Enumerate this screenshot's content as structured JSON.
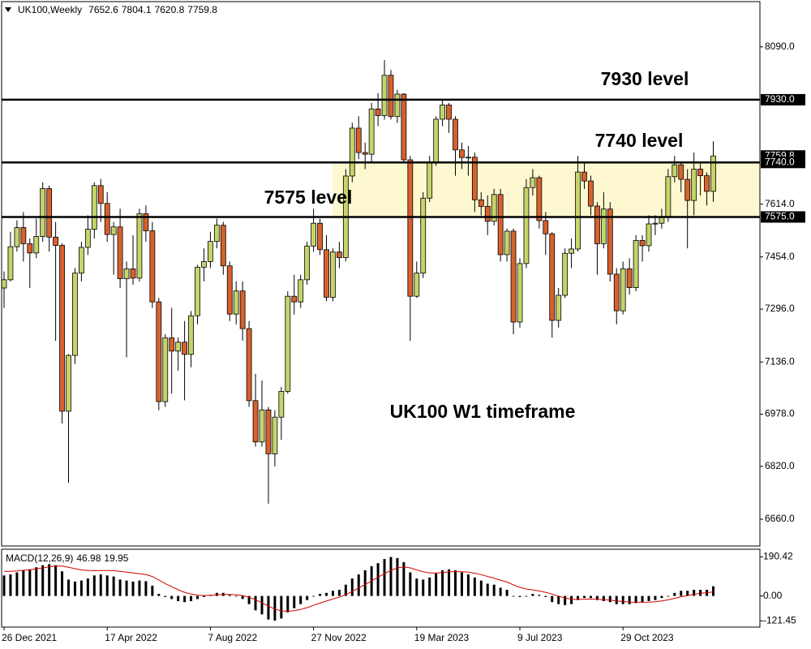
{
  "chart_data": {
    "type": "candlestick",
    "symbol": "UK100,Weekly",
    "categories": [
      "26 Dec 2021",
      null,
      null,
      null,
      null,
      null,
      null,
      null,
      null,
      null,
      null,
      null,
      null,
      null,
      null,
      null,
      "17 Apr 2022",
      null,
      null,
      null,
      null,
      null,
      null,
      null,
      null,
      null,
      null,
      null,
      null,
      null,
      null,
      null,
      "7 Aug 2022",
      null,
      null,
      null,
      null,
      null,
      null,
      null,
      null,
      null,
      null,
      null,
      null,
      null,
      null,
      null,
      "27 Nov 2022",
      null,
      null,
      null,
      null,
      null,
      null,
      null,
      null,
      null,
      null,
      null,
      null,
      null,
      null,
      null,
      "19 Mar 2023",
      null,
      null,
      null,
      null,
      null,
      null,
      null,
      null,
      null,
      null,
      null,
      null,
      null,
      null,
      null,
      "9 Jul 2023",
      null,
      null,
      null,
      null,
      null,
      null,
      null,
      null,
      null,
      null,
      null,
      null,
      null,
      null,
      null,
      "29 Oct 2023",
      null,
      null,
      null,
      null,
      null,
      null,
      null,
      null,
      null,
      null,
      null,
      null,
      null,
      null
    ],
    "candles": [
      [
        7360,
        7410,
        7300,
        7385
      ],
      [
        7385,
        7530,
        7380,
        7485
      ],
      [
        7485,
        7565,
        7470,
        7543
      ],
      [
        7543,
        7590,
        7440,
        7494
      ],
      [
        7494,
        7510,
        7360,
        7466
      ],
      [
        7466,
        7570,
        7450,
        7516
      ],
      [
        7516,
        7680,
        7500,
        7661
      ],
      [
        7661,
        7670,
        7470,
        7514
      ],
      [
        7514,
        7560,
        7200,
        7489
      ],
      [
        7489,
        7495,
        6950,
        6987
      ],
      [
        6987,
        7160,
        6770,
        7156
      ],
      [
        7156,
        7420,
        7130,
        7405
      ],
      [
        7405,
        7500,
        7380,
        7483
      ],
      [
        7483,
        7580,
        7460,
        7538
      ],
      [
        7538,
        7680,
        7510,
        7670
      ],
      [
        7670,
        7690,
        7560,
        7616
      ],
      [
        7616,
        7650,
        7500,
        7522
      ],
      [
        7522,
        7560,
        7400,
        7545
      ],
      [
        7545,
        7600,
        7360,
        7388
      ],
      [
        7388,
        7440,
        7150,
        7418
      ],
      [
        7418,
        7520,
        7370,
        7390
      ],
      [
        7390,
        7600,
        7380,
        7585
      ],
      [
        7585,
        7610,
        7500,
        7533
      ],
      [
        7533,
        7560,
        7300,
        7318
      ],
      [
        7318,
        7330,
        6990,
        7016
      ],
      [
        7016,
        7220,
        7000,
        7209
      ],
      [
        7209,
        7300,
        7040,
        7169
      ],
      [
        7169,
        7210,
        7110,
        7196
      ],
      [
        7196,
        7260,
        7020,
        7159
      ],
      [
        7159,
        7290,
        7120,
        7276
      ],
      [
        7276,
        7430,
        7250,
        7423
      ],
      [
        7423,
        7480,
        7380,
        7440
      ],
      [
        7440,
        7530,
        7420,
        7501
      ],
      [
        7501,
        7570,
        7480,
        7550
      ],
      [
        7550,
        7560,
        7400,
        7427
      ],
      [
        7427,
        7440,
        7260,
        7281
      ],
      [
        7281,
        7380,
        7250,
        7351
      ],
      [
        7351,
        7380,
        7200,
        7237
      ],
      [
        7237,
        7260,
        7000,
        7019
      ],
      [
        7019,
        7100,
        6880,
        6894
      ],
      [
        6894,
        7080,
        6880,
        6991
      ],
      [
        6991,
        7000,
        6707,
        6858
      ],
      [
        6858,
        6990,
        6820,
        6969
      ],
      [
        6969,
        7060,
        6900,
        7047
      ],
      [
        7047,
        7350,
        7040,
        7335
      ],
      [
        7335,
        7400,
        7280,
        7318
      ],
      [
        7318,
        7400,
        7300,
        7385
      ],
      [
        7385,
        7500,
        7370,
        7487
      ],
      [
        7487,
        7600,
        7470,
        7556
      ],
      [
        7556,
        7570,
        7460,
        7476
      ],
      [
        7476,
        7520,
        7320,
        7332
      ],
      [
        7332,
        7480,
        7320,
        7469
      ],
      [
        7469,
        7500,
        7420,
        7452
      ],
      [
        7452,
        7720,
        7440,
        7699
      ],
      [
        7699,
        7860,
        7680,
        7844
      ],
      [
        7844,
        7880,
        7750,
        7770
      ],
      [
        7770,
        7800,
        7720,
        7765
      ],
      [
        7765,
        7920,
        7740,
        7902
      ],
      [
        7902,
        7950,
        7850,
        7882
      ],
      [
        7882,
        8050,
        7870,
        8004
      ],
      [
        8004,
        8020,
        7870,
        7879
      ],
      [
        7879,
        7960,
        7860,
        7947
      ],
      [
        7947,
        7950,
        7740,
        7748
      ],
      [
        7748,
        7760,
        7200,
        7335
      ],
      [
        7335,
        7440,
        7330,
        7405
      ],
      [
        7405,
        7650,
        7390,
        7632
      ],
      [
        7632,
        7760,
        7620,
        7742
      ],
      [
        7742,
        7880,
        7730,
        7871
      ],
      [
        7871,
        7930,
        7850,
        7914
      ],
      [
        7914,
        7920,
        7830,
        7871
      ],
      [
        7871,
        7880,
        7700,
        7778
      ],
      [
        7778,
        7800,
        7720,
        7755
      ],
      [
        7755,
        7790,
        7700,
        7756
      ],
      [
        7756,
        7770,
        7590,
        7627
      ],
      [
        7627,
        7650,
        7580,
        7607
      ],
      [
        7607,
        7640,
        7520,
        7562
      ],
      [
        7562,
        7660,
        7550,
        7643
      ],
      [
        7643,
        7660,
        7440,
        7461
      ],
      [
        7461,
        7540,
        7440,
        7532
      ],
      [
        7532,
        7540,
        7220,
        7257
      ],
      [
        7257,
        7450,
        7240,
        7434
      ],
      [
        7434,
        7690,
        7420,
        7664
      ],
      [
        7664,
        7720,
        7640,
        7694
      ],
      [
        7694,
        7700,
        7540,
        7564
      ],
      [
        7564,
        7590,
        7460,
        7524
      ],
      [
        7524,
        7530,
        7210,
        7262
      ],
      [
        7262,
        7360,
        7240,
        7338
      ],
      [
        7338,
        7480,
        7330,
        7465
      ],
      [
        7465,
        7510,
        7420,
        7478
      ],
      [
        7478,
        7760,
        7470,
        7711
      ],
      [
        7711,
        7740,
        7660,
        7684
      ],
      [
        7684,
        7700,
        7580,
        7608
      ],
      [
        7608,
        7620,
        7400,
        7494
      ],
      [
        7494,
        7650,
        7480,
        7599
      ],
      [
        7599,
        7620,
        7380,
        7402
      ],
      [
        7402,
        7420,
        7250,
        7291
      ],
      [
        7291,
        7440,
        7280,
        7418
      ],
      [
        7418,
        7450,
        7340,
        7361
      ],
      [
        7361,
        7520,
        7350,
        7504
      ],
      [
        7504,
        7520,
        7440,
        7488
      ],
      [
        7488,
        7580,
        7470,
        7554
      ],
      [
        7554,
        7580,
        7520,
        7556
      ],
      [
        7556,
        7600,
        7540,
        7576
      ],
      [
        7576,
        7720,
        7560,
        7697
      ],
      [
        7697,
        7760,
        7680,
        7733
      ],
      [
        7733,
        7740,
        7650,
        7689
      ],
      [
        7689,
        7720,
        7480,
        7625
      ],
      [
        7625,
        7770,
        7580,
        7720
      ],
      [
        7720,
        7740,
        7640,
        7700
      ],
      [
        7700,
        7710,
        7610,
        7652.6
      ],
      [
        7652.6,
        7804.1,
        7620.8,
        7759.8
      ]
    ],
    "up_color": "#c6d36a",
    "down_color": "#d8612c",
    "ylim": [
      6579,
      8227
    ],
    "yticks": [
      {
        "value": 8090,
        "label": "8090.0"
      },
      {
        "value": 7614,
        "label": "7614.0"
      },
      {
        "value": 7454,
        "label": "7454.0"
      },
      {
        "value": 7296,
        "label": "7296.0"
      },
      {
        "value": 7136,
        "label": "7136.0"
      },
      {
        "value": 6978,
        "label": "6978.0"
      },
      {
        "value": 6820,
        "label": "6820.0"
      },
      {
        "value": 6660,
        "label": "6660.0"
      }
    ],
    "levels": [
      {
        "value": 7930,
        "label": "7930.0",
        "annotation": "7930 level"
      },
      {
        "value": 7740,
        "label": "7740.0",
        "annotation": "7740 level"
      },
      {
        "value": 7575,
        "label": "7575.0",
        "annotation": "7575 level"
      }
    ],
    "zone": [
      7575,
      7740
    ],
    "zone_color": "#fdf8cf",
    "annotation": "UK100 W1 timeframe",
    "indicator": {
      "label": "MACD(12,26,9)",
      "values": [
        100,
        105,
        115,
        125,
        130,
        140,
        150,
        155,
        150,
        120,
        80,
        70,
        75,
        85,
        100,
        105,
        100,
        95,
        80,
        75,
        70,
        75,
        72,
        50,
        10,
        -5,
        -15,
        -25,
        -30,
        -25,
        -15,
        -5,
        5,
        15,
        15,
        5,
        0,
        -15,
        -40,
        -70,
        -90,
        -115,
        -120,
        -110,
        -80,
        -60,
        -40,
        -20,
        0,
        10,
        15,
        25,
        30,
        55,
        85,
        105,
        125,
        145,
        160,
        180,
        190,
        185,
        165,
        115,
        85,
        80,
        90,
        110,
        125,
        130,
        125,
        115,
        105,
        90,
        75,
        60,
        55,
        40,
        30,
        0,
        -5,
        0,
        10,
        5,
        -5,
        -30,
        -40,
        -45,
        -40,
        -20,
        -10,
        -10,
        -20,
        -25,
        -30,
        -40,
        -40,
        -40,
        -35,
        -30,
        -25,
        -20,
        -10,
        0,
        15,
        25,
        25,
        30,
        30,
        30,
        46.98
      ],
      "signal": [
        120,
        120,
        122,
        125,
        128,
        132,
        137,
        142,
        146,
        146,
        140,
        133,
        127,
        124,
        123,
        124,
        124,
        123,
        120,
        116,
        112,
        108,
        104,
        95,
        78,
        60,
        45,
        30,
        18,
        9,
        4,
        2,
        3,
        5,
        7,
        7,
        6,
        2,
        -6,
        -19,
        -33,
        -50,
        -64,
        -73,
        -75,
        -72,
        -66,
        -57,
        -46,
        -35,
        -25,
        -15,
        -6,
        6,
        22,
        39,
        56,
        74,
        91,
        109,
        125,
        137,
        142,
        137,
        127,
        118,
        112,
        112,
        114,
        117,
        119,
        118,
        116,
        111,
        104,
        95,
        87,
        77,
        68,
        54,
        42,
        34,
        29,
        24,
        18,
        9,
        -1,
        -10,
        -16,
        -17,
        -16,
        -15,
        -16,
        -18,
        -20,
        -24,
        -27,
        -30,
        -31,
        -31,
        -30,
        -28,
        -24,
        -19,
        -12,
        -4,
        2,
        8,
        13,
        16,
        19.95
      ],
      "color": "#000000",
      "signal_color": "#d40000",
      "ylim": [
        -152,
        228
      ],
      "yticks": [
        190.42,
        {
          "value": 0,
          "label": "0.00"
        },
        -121.45
      ]
    }
  }
}
